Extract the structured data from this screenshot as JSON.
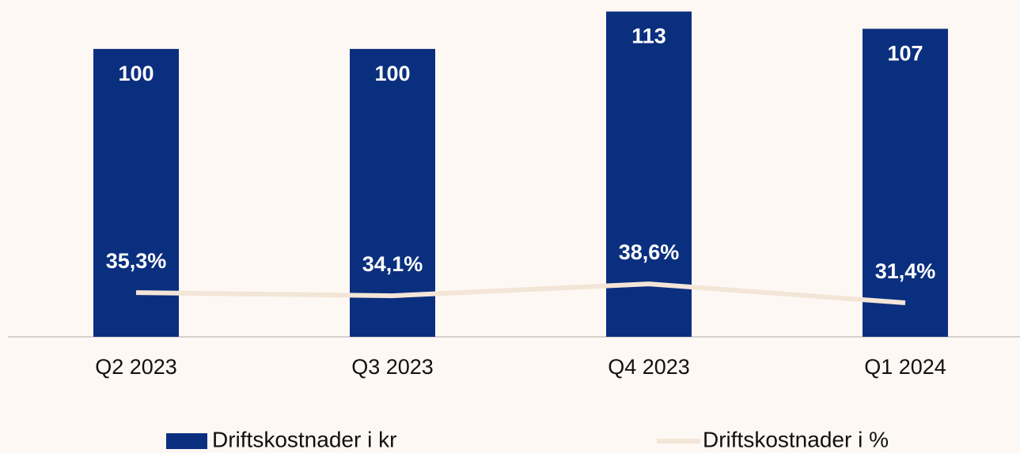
{
  "chart_data": {
    "type": "bar",
    "categories": [
      "Q2 2023",
      "Q3 2023",
      "Q4 2023",
      "Q1 2024"
    ],
    "series": [
      {
        "name": "Driftskostnader i kr",
        "type": "bar",
        "color": "#0b2f7f",
        "values": [
          100,
          100,
          113,
          107
        ]
      },
      {
        "name": "Driftskostnader i %",
        "type": "line",
        "axis": "y2",
        "color": "#f3e5d7",
        "values": [
          35.3,
          34.1,
          38.6,
          31.4
        ],
        "value_labels": [
          "35,3%",
          "34,1%",
          "38,6%",
          "31,4%"
        ]
      }
    ],
    "ylim": [
      0,
      117
    ],
    "y2lim": [
      18.5,
      146.5
    ],
    "legend": "bottom"
  }
}
